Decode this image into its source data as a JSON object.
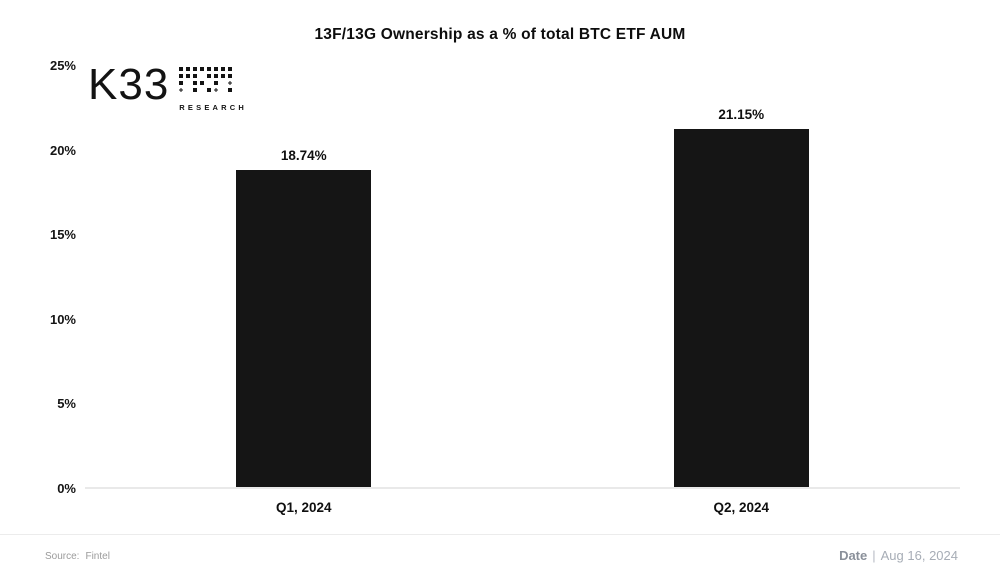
{
  "title": "13F/13G Ownership as a % of total BTC ETF AUM",
  "logo": {
    "text": "K33",
    "subtext": "RESEARCH"
  },
  "footer": {
    "source_label": "Source:",
    "source_value": "Fintel",
    "date_label": "Date",
    "date_separator": "|",
    "date_value": "Aug 16, 2024"
  },
  "chart_data": {
    "type": "bar",
    "title": "13F/13G Ownership as a % of total BTC ETF AUM",
    "categories": [
      "Q1, 2024",
      "Q2, 2024"
    ],
    "values": [
      18.74,
      21.15
    ],
    "data_labels": [
      "18.74%",
      "21.15%"
    ],
    "xlabel": "",
    "ylabel": "",
    "ylim": [
      0,
      25
    ],
    "ytick_step": 5,
    "ytick_labels": [
      "0%",
      "5%",
      "10%",
      "15%",
      "20%",
      "25%"
    ],
    "bar_color": "#151515",
    "grid": false,
    "legend": false
  }
}
